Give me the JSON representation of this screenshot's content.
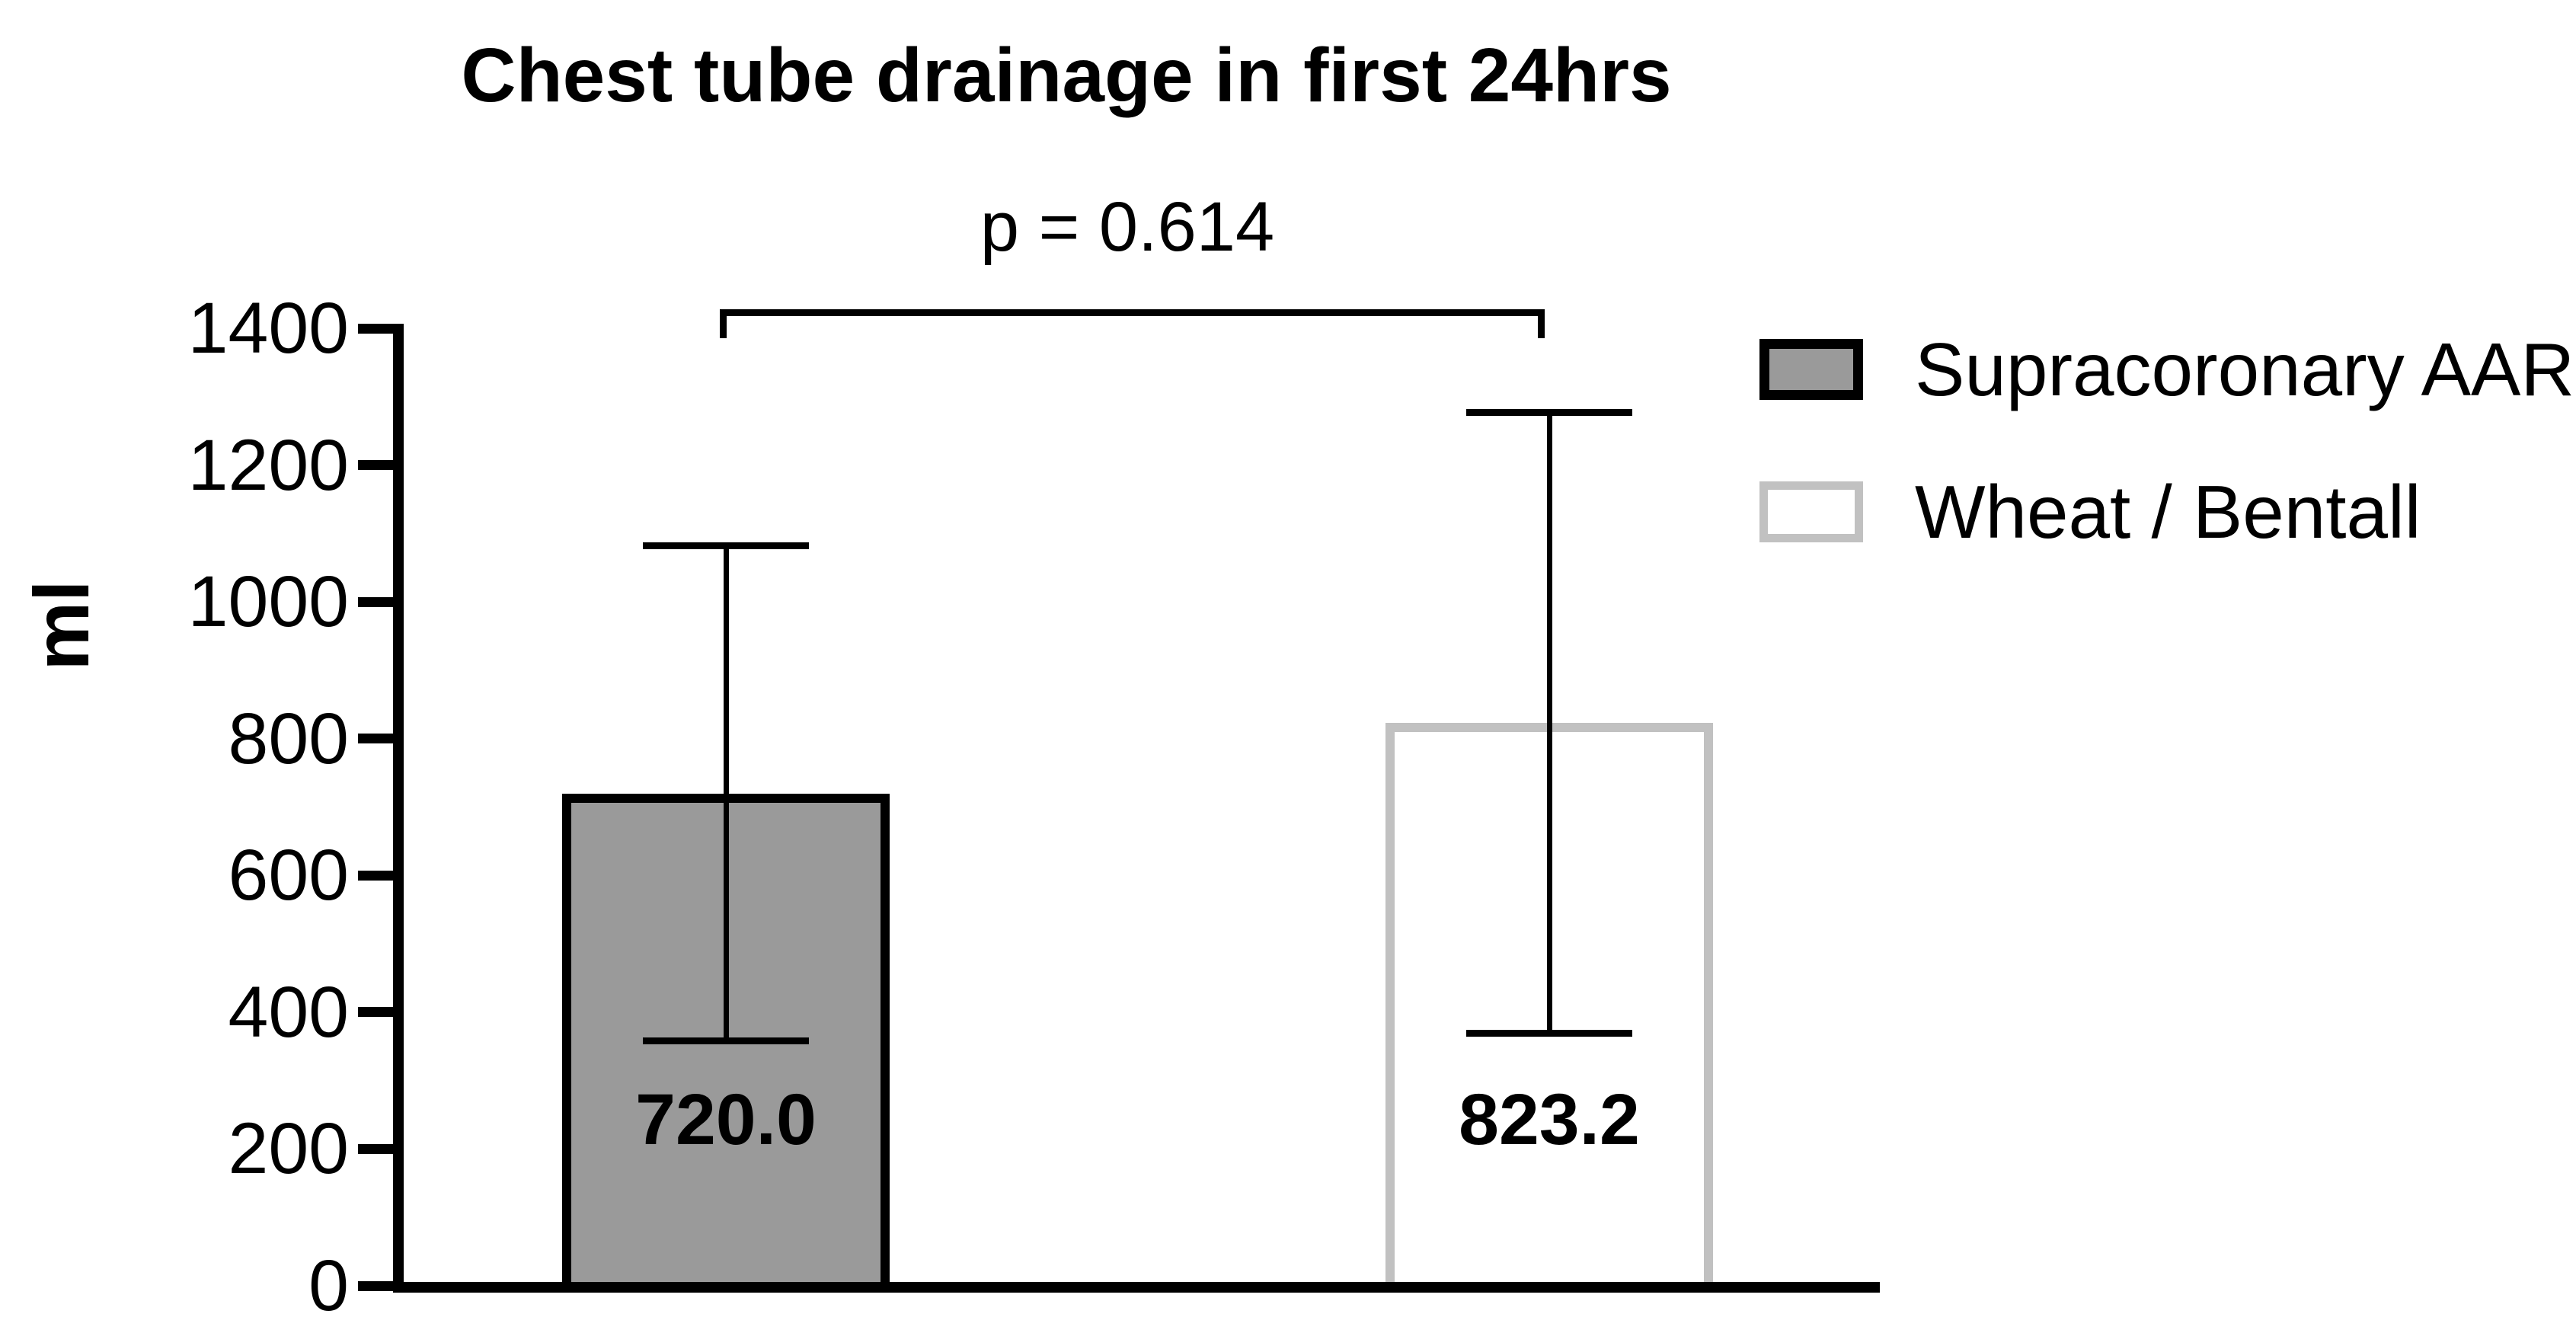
{
  "figure": {
    "title": "Chest tube drainage in first 24hrs",
    "p_label": "p = 0.614",
    "ylabel": "ml"
  },
  "chart_data": {
    "type": "bar",
    "title": "Chest tube drainage in first 24hrs",
    "xlabel": "",
    "ylabel": "ml",
    "ylim": [
      0,
      1400
    ],
    "yticks": [
      0,
      200,
      400,
      600,
      800,
      1000,
      1200,
      1400
    ],
    "grid": false,
    "categories": [
      "Supracoronary AAR",
      "Wheat / Bentall"
    ],
    "values": [
      720.0,
      823.2
    ],
    "value_labels": [
      "720.0",
      "823.2"
    ],
    "error_sd": [
      362,
      454
    ],
    "error_high": [
      1082,
      1277
    ],
    "error_low": [
      358,
      369
    ],
    "annotation": {
      "text": "p = 0.614",
      "compares": [
        "Supracoronary AAR",
        "Wheat / Bentall"
      ]
    },
    "legend_position": "upper right",
    "legend": [
      {
        "label": "Supracoronary AAR",
        "fill": "#9a9a9a",
        "border": "#000000"
      },
      {
        "label": "Wheat / Bentall",
        "fill": "#ffffff",
        "border": "#c1c1c1"
      }
    ],
    "colors": {
      "axis": "#000000",
      "text": "#000000",
      "background": "#ffffff"
    }
  }
}
